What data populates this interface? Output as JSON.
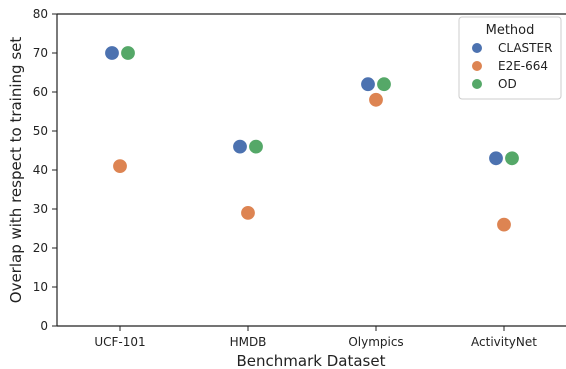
{
  "chart_data": {
    "type": "scatter",
    "categories": [
      "UCF-101",
      "HMDB",
      "Olympics",
      "ActivityNet"
    ],
    "series": [
      {
        "name": "CLASTER",
        "color": "#4c72b0",
        "values": [
          70,
          46,
          62,
          43
        ]
      },
      {
        "name": "E2E-664",
        "color": "#dd8452",
        "values": [
          41,
          29,
          58,
          26
        ]
      },
      {
        "name": "OD",
        "color": "#55a868",
        "values": [
          70,
          46,
          62,
          43
        ]
      }
    ],
    "xlabel": "Benchmark Dataset",
    "ylabel": "Overlap with respect to training set",
    "ylim": [
      0,
      80
    ],
    "yticks": [
      0,
      10,
      20,
      30,
      40,
      50,
      60,
      70,
      80
    ],
    "grid": false,
    "legend": {
      "title": "Method",
      "placement": "top-right"
    }
  }
}
